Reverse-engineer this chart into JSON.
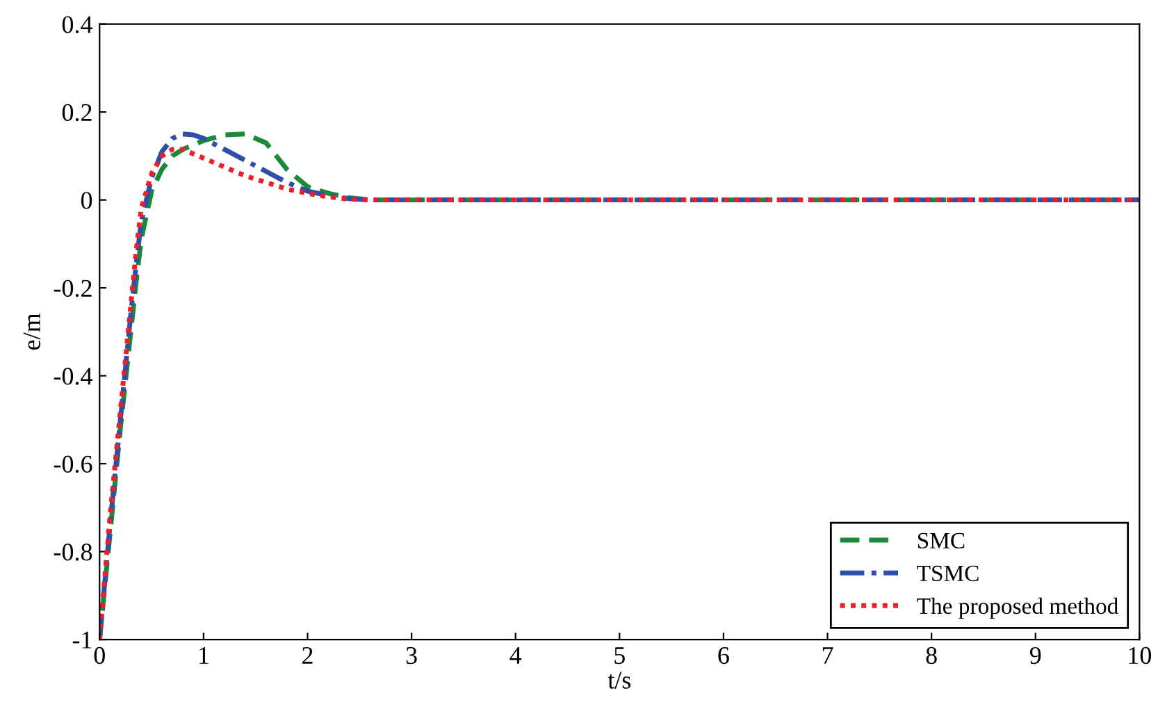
{
  "chart_data": {
    "type": "line",
    "xlabel": "t/s",
    "ylabel": "e/m",
    "x": [
      0,
      0.05,
      0.1,
      0.15,
      0.2,
      0.25,
      0.3,
      0.35,
      0.4,
      0.5,
      0.6,
      0.7,
      0.8,
      0.9,
      1.0,
      1.2,
      1.4,
      1.6,
      1.8,
      2.0,
      2.2,
      2.4,
      2.6,
      3,
      10
    ],
    "series": [
      {
        "name": "SMC",
        "color": "#1a8a3a",
        "line_style": "dashed",
        "values": [
          -1,
          -0.88,
          -0.76,
          -0.64,
          -0.52,
          -0.41,
          -0.3,
          -0.19,
          -0.09,
          0.02,
          0.07,
          0.1,
          0.115,
          0.125,
          0.135,
          0.148,
          0.15,
          0.13,
          0.07,
          0.03,
          0.015,
          0.005,
          0,
          0,
          0
        ]
      },
      {
        "name": "TSMC",
        "color": "#2e4fa8",
        "line_style": "dashdot",
        "values": [
          -1,
          -0.87,
          -0.74,
          -0.62,
          -0.5,
          -0.38,
          -0.26,
          -0.15,
          -0.05,
          0.05,
          0.11,
          0.14,
          0.15,
          0.148,
          0.14,
          0.115,
          0.09,
          0.065,
          0.04,
          0.02,
          0.01,
          0.003,
          0,
          0,
          0
        ]
      },
      {
        "name": "The proposed method",
        "color": "#e8212b",
        "line_style": "dotted",
        "values": [
          -1,
          -0.86,
          -0.72,
          -0.6,
          -0.48,
          -0.36,
          -0.24,
          -0.12,
          -0.02,
          0.06,
          0.1,
          0.115,
          0.115,
          0.105,
          0.095,
          0.075,
          0.055,
          0.04,
          0.025,
          0.015,
          0.007,
          0.002,
          0,
          0,
          0
        ]
      }
    ],
    "xlim": [
      0,
      10
    ],
    "ylim": [
      -1,
      0.4
    ],
    "xticks": [
      0,
      1,
      2,
      3,
      4,
      5,
      6,
      7,
      8,
      9,
      10
    ],
    "yticks": [
      -1,
      -0.8,
      -0.6,
      -0.4,
      -0.2,
      0,
      0.2,
      0.4
    ],
    "grid": false,
    "legend": "bottom right"
  }
}
